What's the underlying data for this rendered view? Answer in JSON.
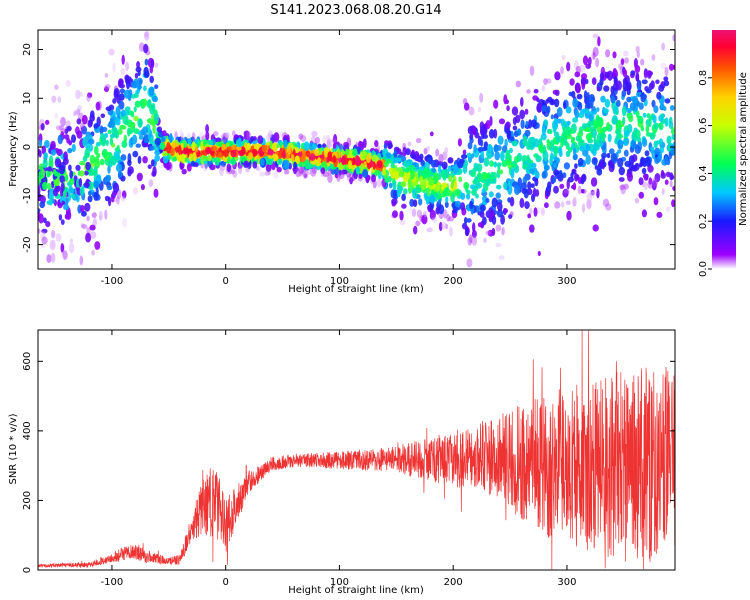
{
  "title": "S141.2023.068.08.20.G14",
  "colors": {
    "snr_line": "#ee3333",
    "axis": "#000000"
  },
  "chart_data": [
    {
      "type": "heatmap",
      "xlabel": "Height of straight line (km)",
      "ylabel": "Frequency (Hz)",
      "xlim": [
        -165,
        395
      ],
      "ylim": [
        -25,
        24
      ],
      "xticks": [
        -100,
        0,
        100,
        200,
        300
      ],
      "yticks": [
        -20,
        -10,
        0,
        10,
        20
      ],
      "colorbar": {
        "label": "Normalized spectral amplitude",
        "range": [
          0.0,
          1.0
        ],
        "ticks": [
          0.0,
          0.2,
          0.4,
          0.6,
          0.8
        ],
        "colormap": "rainbow (violet-blue-cyan-green-yellow-orange-red-magenta)"
      },
      "ridge": {
        "height_km": [
          -140,
          -120,
          -100,
          -80,
          -70,
          -62,
          -55,
          -40,
          0,
          40,
          80,
          120,
          140,
          150,
          170,
          190,
          200,
          220,
          240,
          270,
          300,
          330,
          360,
          395
        ],
        "frequency_hz": [
          -6,
          -4,
          0,
          6,
          9,
          4,
          0,
          -1,
          -1,
          -1,
          -2,
          -3,
          -4,
          -6,
          -7,
          -8,
          -8,
          -6,
          -5,
          -1,
          2,
          4,
          5,
          3
        ]
      }
    },
    {
      "type": "line",
      "xlabel": "Height of straight line (km)",
      "ylabel": "SNR (10 * v/v)",
      "xlim": [
        -165,
        395
      ],
      "ylim": [
        0,
        690
      ],
      "xticks": [
        -100,
        0,
        100,
        200,
        300
      ],
      "yticks": [
        0,
        200,
        400,
        600
      ],
      "series": [
        {
          "height_km": [
            -165,
            -120,
            -100,
            -80,
            -70,
            -50,
            -40,
            -30,
            -20,
            -10,
            0,
            10,
            20,
            40,
            60,
            100,
            150,
            200,
            230,
            260,
            300,
            350,
            395
          ],
          "snr_mean": [
            12,
            15,
            35,
            55,
            40,
            25,
            30,
            120,
            180,
            200,
            130,
            190,
            250,
            305,
            315,
            315,
            318,
            320,
            325,
            310,
            300,
            300,
            300
          ],
          "snr_spread": [
            5,
            8,
            15,
            25,
            20,
            10,
            15,
            40,
            80,
            120,
            80,
            60,
            30,
            20,
            20,
            25,
            40,
            80,
            110,
            170,
            230,
            280,
            290
          ]
        }
      ]
    }
  ]
}
